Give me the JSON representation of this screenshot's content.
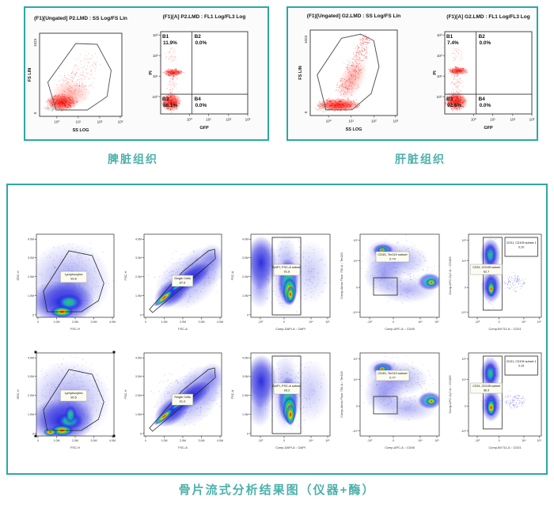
{
  "theme": {
    "teal": "#2da7a7",
    "caption_color": "#4db1ac",
    "density_hot": "#ff2000",
    "density_cold": "#2222dd",
    "event_red": "#e80000"
  },
  "top_panels": [
    {
      "caption": "脾脏组织",
      "scatter": {
        "title": "(F1)[Ungated] P2.LMD : SS Log/FS Lin",
        "xlabel": "SS LOG",
        "ylabel": "FS LIN",
        "yticks": [
          "1023",
          "0"
        ],
        "xticks": [
          "10⁰",
          "10¹",
          "10²",
          "10³"
        ]
      },
      "quad": {
        "title": "(F1)[A] P2.LMD : FL1 Log/FL3 Log",
        "xlabel": "GFP",
        "ylabel": "PI",
        "yticks": [
          "10³",
          "10²",
          "10¹",
          "10⁰"
        ],
        "xticks": [
          "10⁰",
          "10¹",
          "10²",
          "10³"
        ],
        "q1_name": "B1",
        "q1_value": "11.9%",
        "q2_name": "B2",
        "q2_value": "0.0%",
        "q3_name": "B3",
        "q3_value": "88.1%",
        "q4_name": "B4",
        "q4_value": "0.0%"
      }
    },
    {
      "caption": "肝脏组织",
      "scatter": {
        "title": "(F1)[Ungated] G2.LMD : SS Log/FS Lin",
        "xlabel": "SS LOG",
        "ylabel": "FS LIN",
        "yticks": [
          "1023",
          "0"
        ],
        "xticks": [
          "10⁰",
          "10¹",
          "10²",
          "10³"
        ]
      },
      "quad": {
        "title": "(F1)[A] G2.LMD : FL1 Log/FL3 Log",
        "xlabel": "GFP",
        "ylabel": "PI",
        "yticks": [
          "10³",
          "10²",
          "10¹",
          "10⁰"
        ],
        "xticks": [
          "10⁰",
          "10¹",
          "10²",
          "10³"
        ],
        "q1_name": "B1",
        "q1_value": "7.4%",
        "q2_name": "B2",
        "q2_value": "0.0%",
        "q3_name": "B3",
        "q3_value": "92.6%",
        "q4_name": "B4",
        "q4_value": "0.0%"
      }
    }
  ],
  "bottom_panel": {
    "caption": "骨片流式分析结果图（仪器+酶）",
    "columns": [
      {
        "xlabel": "FSC-H",
        "ylabel": "SSC-H",
        "yticks": [
          "4.0M",
          "3.0M",
          "2.0M",
          "1.0M",
          "0"
        ],
        "xticks": [
          "0",
          "1.0M",
          "2.0M",
          "3.0M",
          "4.0M"
        ]
      },
      {
        "xlabel": "FSC-A",
        "ylabel": "FSC-H",
        "yticks": [
          "4.0M",
          "3.0M",
          "2.0M",
          "1.0M",
          "0"
        ],
        "xticks": [
          "0",
          "1.0M",
          "2.0M",
          "3.0M",
          "4.0M"
        ]
      },
      {
        "xlabel": "Comp-DAPI-A :: DAPI",
        "ylabel": "FSC-A",
        "yticks": [
          "4.0M",
          "3.0M",
          "2.0M",
          "1.0M",
          "0"
        ],
        "xticks": [
          "-10³",
          "0",
          "10⁴",
          "10⁵"
        ]
      },
      {
        "xlabel": "Comp-APC-A :: CD45",
        "ylabel": "Comp-Alexa Fluor 700-A :: Ter119",
        "yticks": [
          "10⁵",
          "10⁴",
          "0",
          "-10⁴"
        ],
        "xticks": [
          "-10³",
          "0",
          "10⁴",
          "10⁵"
        ]
      },
      {
        "xlabel": "Comp-BV711-A :: CD31",
        "ylabel": "Comp-APC-Cy7-A :: CD105",
        "yticks": [
          "10⁵",
          "10⁴",
          "0",
          "-10⁴"
        ],
        "xticks": [
          "-10³",
          "0",
          "10⁴",
          "10⁵"
        ]
      }
    ],
    "rows": [
      {
        "c1": {
          "gate": "Lymphocytes",
          "value": "93.6"
        },
        "c2": {
          "gate": "Single Cells",
          "value": "87.6"
        },
        "c3": {
          "gate": "DAPI, FSC-A subset",
          "value": "91.6"
        },
        "c4": {
          "gate": "CD45, Ter119 subset",
          "value": "0.74"
        },
        "c5a": {
          "gate": "CD31, CD105 subset",
          "value": "62.7"
        },
        "c5b": {
          "gate": "CD31, CD105 subset-1",
          "value": "0.20"
        }
      },
      {
        "c1": {
          "gate": "Lymphocytes",
          "value": "90.6"
        },
        "c2": {
          "gate": "Single Cells",
          "value": "91.0"
        },
        "c3": {
          "gate": "DAPI, FSC-A subset",
          "value": "93.2"
        },
        "c4": {
          "gate": "CD45, Ter119 subset",
          "value": "0.77"
        },
        "c5a": {
          "gate": "CD31, CD105 subset",
          "value": "66.9"
        },
        "c5b": {
          "gate": "CD31, CD105 subset-1",
          "value": "0.25"
        }
      }
    ]
  },
  "chart_data": [
    {
      "type": "scatter",
      "group": "脾脏组织",
      "title": "(F1)[Ungated] P2.LMD : SS Log/FS Lin",
      "xlabel": "SS LOG",
      "ylabel": "FS LIN",
      "x_scale": "log10 (10^0 to 10^3)",
      "y_range": [
        0,
        1023
      ],
      "annotations": [
        "polygon gate around red event cloud"
      ]
    },
    {
      "type": "scatter",
      "group": "脾脏组织",
      "title": "(F1)[A] P2.LMD : FL1 Log/FL3 Log",
      "xlabel": "GFP",
      "ylabel": "PI",
      "x_scale": "log10 (10^0 to 10^3)",
      "y_scale": "log10 (10^0 to 10^3)",
      "quadrants": [
        {
          "name": "B1",
          "pct": 11.9
        },
        {
          "name": "B2",
          "pct": 0.0
        },
        {
          "name": "B3",
          "pct": 88.1
        },
        {
          "name": "B4",
          "pct": 0.0
        }
      ]
    },
    {
      "type": "scatter",
      "group": "肝脏组织",
      "title": "(F1)[Ungated] G2.LMD : SS Log/FS Lin",
      "xlabel": "SS LOG",
      "ylabel": "FS LIN",
      "x_scale": "log10 (10^0 to 10^3)",
      "y_range": [
        0,
        1023
      ],
      "annotations": [
        "polygon gate around red event cloud"
      ]
    },
    {
      "type": "scatter",
      "group": "肝脏组织",
      "title": "(F1)[A] G2.LMD : FL1 Log/FL3 Log",
      "xlabel": "GFP",
      "ylabel": "PI",
      "x_scale": "log10 (10^0 to 10^3)",
      "y_scale": "log10 (10^0 to 10^3)",
      "quadrants": [
        {
          "name": "B1",
          "pct": 7.4
        },
        {
          "name": "B2",
          "pct": 0.0
        },
        {
          "name": "B3",
          "pct": 92.6
        },
        {
          "name": "B4",
          "pct": 0.0
        }
      ]
    },
    {
      "type": "scatter",
      "group": "骨片流式分析结果图（仪器+酶） row 1",
      "plots": [
        {
          "x": "FSC-H",
          "y": "SSC-H",
          "gate": "Lymphocytes",
          "pct": 93.6
        },
        {
          "x": "FSC-A",
          "y": "FSC-H",
          "gate": "Single Cells",
          "pct": 87.6
        },
        {
          "x": "Comp-DAPI-A :: DAPI",
          "y": "FSC-A",
          "gate": "DAPI, FSC-A subset",
          "pct": 91.6
        },
        {
          "x": "Comp-APC-A :: CD45",
          "y": "Comp-Alexa Fluor 700-A :: Ter119",
          "gate": "CD45, Ter119 subset",
          "pct": 0.74
        },
        {
          "x": "Comp-BV711-A :: CD31",
          "y": "Comp-APC-Cy7-A :: CD105",
          "gates": [
            {
              "name": "CD31, CD105 subset",
              "pct": 62.7
            },
            {
              "name": "CD31, CD105 subset-1",
              "pct": 0.2
            }
          ]
        }
      ]
    },
    {
      "type": "scatter",
      "group": "骨片流式分析结果图（仪器+酶） row 2",
      "plots": [
        {
          "x": "FSC-H",
          "y": "SSC-H",
          "gate": "Lymphocytes",
          "pct": 90.6
        },
        {
          "x": "FSC-A",
          "y": "FSC-H",
          "gate": "Single Cells",
          "pct": 91.0
        },
        {
          "x": "Comp-DAPI-A :: DAPI",
          "y": "FSC-A",
          "gate": "DAPI, FSC-A subset",
          "pct": 93.2
        },
        {
          "x": "Comp-APC-A :: CD45",
          "y": "Comp-Alexa Fluor 700-A :: Ter119",
          "gate": "CD45, Ter119 subset",
          "pct": 0.77
        },
        {
          "x": "Comp-BV711-A :: CD31",
          "y": "Comp-APC-Cy7-A :: CD105",
          "gates": [
            {
              "name": "CD31, CD105 subset",
              "pct": 66.9
            },
            {
              "name": "CD31, CD105 subset-1",
              "pct": 0.25
            }
          ]
        }
      ]
    }
  ]
}
